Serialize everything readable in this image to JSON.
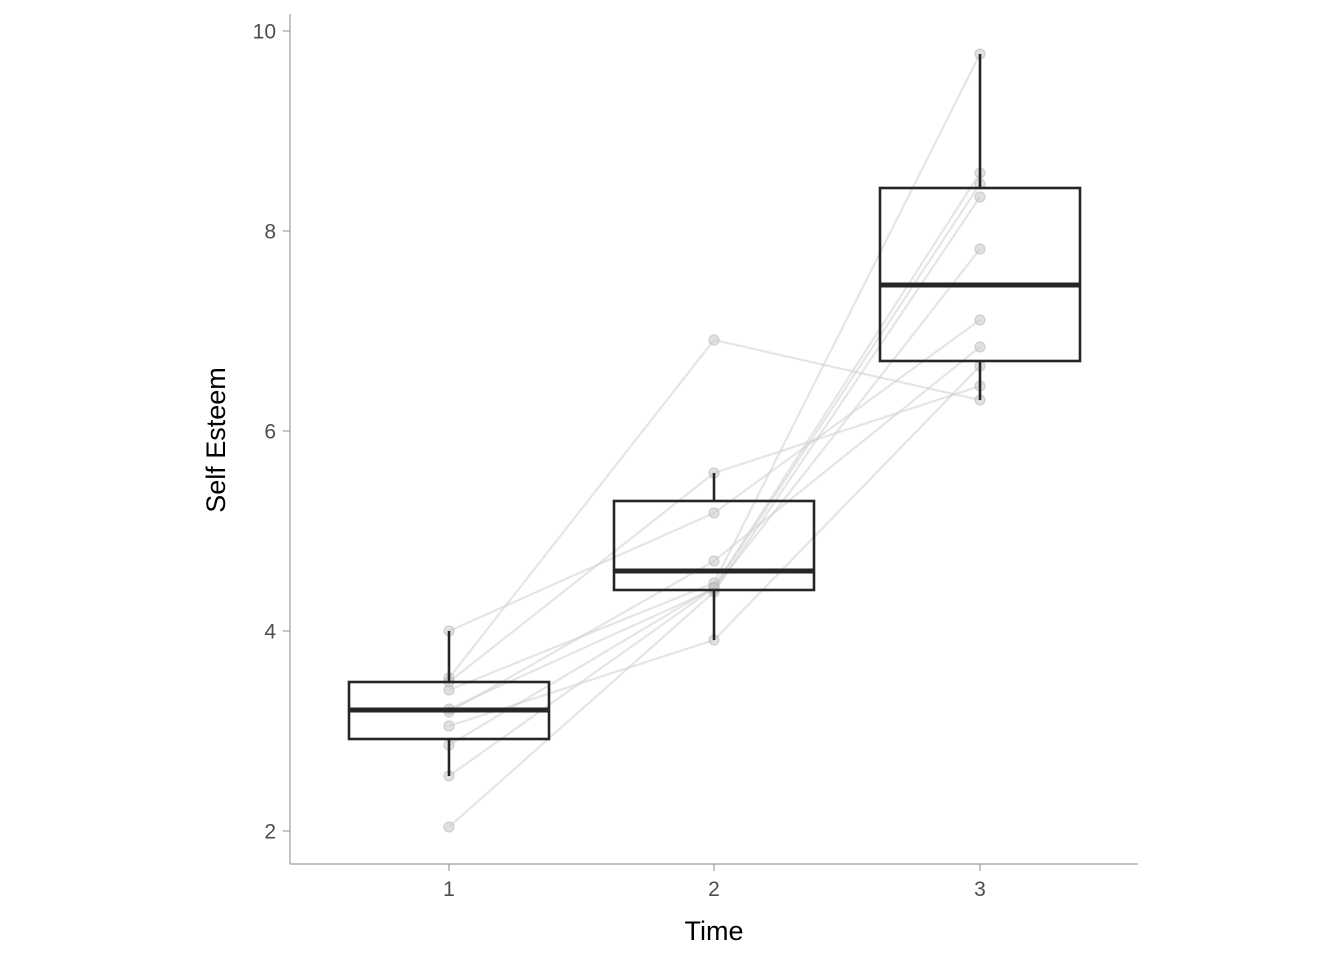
{
  "chart_data": {
    "type": "box",
    "xlabel": "Time",
    "ylabel": "Self Esteem",
    "categories": [
      "1",
      "2",
      "3"
    ],
    "ylim": [
      1.7,
      10.2
    ],
    "yticks": [
      2,
      4,
      6,
      8,
      10
    ],
    "grid": false,
    "boxes": [
      {
        "category": "1",
        "lower_whisker": 2.55,
        "q1": 2.92,
        "median": 3.21,
        "q3": 3.49,
        "upper_whisker": 4.0
      },
      {
        "category": "2",
        "lower_whisker": 3.91,
        "q1": 4.41,
        "median": 4.6,
        "q3": 5.3,
        "upper_whisker": 5.58
      },
      {
        "category": "3",
        "lower_whisker": 6.31,
        "q1": 6.7,
        "median": 7.46,
        "q3": 8.43,
        "upper_whisker": 9.77
      }
    ],
    "subjects": [
      {
        "values": [
          4.0,
          5.18,
          7.11
        ]
      },
      {
        "values": [
          2.04,
          4.39,
          8.34
        ]
      },
      {
        "values": [
          3.53,
          6.91,
          6.31
        ]
      },
      {
        "values": [
          3.19,
          4.7,
          6.84
        ]
      },
      {
        "values": [
          3.41,
          4.48,
          9.77
        ]
      },
      {
        "values": [
          2.86,
          4.44,
          8.58
        ]
      },
      {
        "values": [
          3.05,
          3.91,
          6.65
        ]
      },
      {
        "values": [
          3.22,
          4.42,
          7.82
        ]
      },
      {
        "values": [
          2.55,
          4.43,
          8.47
        ]
      },
      {
        "values": [
          3.49,
          5.58,
          6.45
        ]
      }
    ]
  }
}
